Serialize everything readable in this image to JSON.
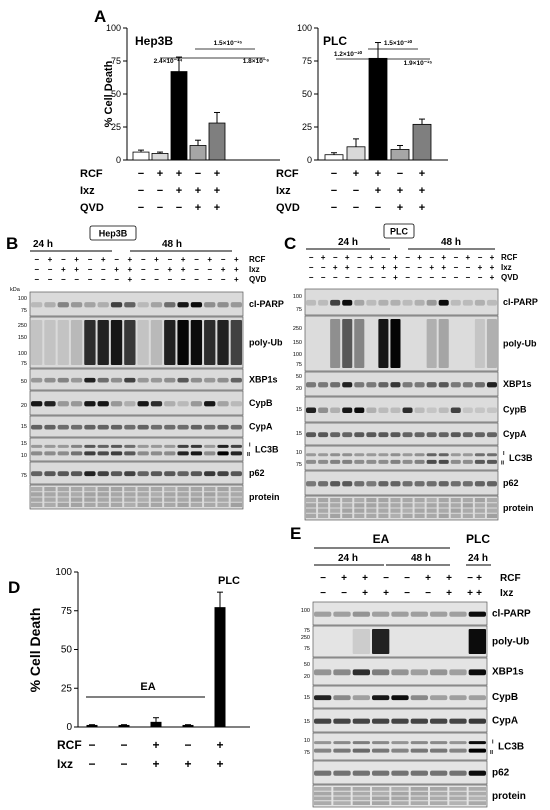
{
  "panel_labels": {
    "A": "A",
    "B": "B",
    "C": "C",
    "D": "D",
    "E": "E"
  },
  "chart_data": [
    {
      "type": "bar",
      "title": "Hep3B",
      "ylabel": "% Cell Death",
      "ylim": [
        0,
        100
      ],
      "yticks": [
        "0",
        "25",
        "50",
        "75",
        "100"
      ],
      "colors": [
        "#ffffff",
        "#d9d9d9",
        "#000000",
        "#a6a6a6",
        "#7f7f7f"
      ],
      "values": [
        6,
        5,
        67,
        11,
        28
      ],
      "errors": [
        1.5,
        1,
        11,
        4,
        8
      ],
      "pvalues": [
        "1.5×10⁻¹⁵",
        "2.4×10⁻¹⁴",
        "1.8×10⁻⁶"
      ]
    },
    {
      "type": "bar",
      "title": "PLC",
      "ylim": [
        0,
        100
      ],
      "yticks": [
        "0",
        "25",
        "50",
        "75",
        "100"
      ],
      "colors": [
        "#ffffff",
        "#d9d9d9",
        "#000000",
        "#a6a6a6",
        "#7f7f7f"
      ],
      "values": [
        4,
        10,
        77,
        8,
        27
      ],
      "errors": [
        1.5,
        6,
        12,
        3,
        4
      ],
      "pvalues": [
        "1.5×10⁻²⁰",
        "1.2×10⁻²⁰",
        "1.9×10⁻¹⁵"
      ]
    },
    {
      "type": "bar",
      "ylabel": "% Cell Death",
      "ylim": [
        0,
        100
      ],
      "yticks": [
        "0",
        "25",
        "50",
        "75",
        "100"
      ],
      "values": [
        1,
        1,
        3,
        1,
        77
      ],
      "errors": [
        0.5,
        0.5,
        3,
        0.5,
        10
      ],
      "colors": [
        "#000000",
        "#000000",
        "#000000",
        "#000000",
        "#000000"
      ],
      "annotations": {
        "group": "EA",
        "single": "PLC"
      }
    }
  ],
  "treatments_a": {
    "labels": [
      "RCF",
      "Ixz",
      "QVD"
    ],
    "rows": [
      [
        "−",
        "+",
        "+",
        "−",
        "+"
      ],
      [
        "−",
        "−",
        "+",
        "+",
        "+"
      ],
      [
        "−",
        "−",
        "−",
        "+",
        "+"
      ]
    ]
  },
  "treatments_d": {
    "labels": [
      "RCF",
      "Ixz"
    ],
    "rows": [
      [
        "−",
        "−",
        "+",
        "−",
        "+"
      ],
      [
        "−",
        "−",
        "+",
        "+",
        "+"
      ]
    ]
  },
  "panel_b": {
    "cell_line": "Hep3B",
    "times": [
      "24 h",
      "48 h"
    ],
    "treatment_labels": [
      "RCF",
      "Ixz",
      "QVD"
    ],
    "treatment_rows": [
      [
        "−",
        "+",
        "−",
        "+",
        "−",
        "+",
        "−",
        "+",
        "−",
        "+",
        "−",
        "+",
        "−",
        "+",
        "−",
        "+"
      ],
      [
        "−",
        "−",
        "+",
        "+",
        "−",
        "−",
        "+",
        "+",
        "−",
        "−",
        "+",
        "+",
        "−",
        "−",
        "+",
        "+"
      ],
      [
        "−",
        "−",
        "−",
        "−",
        "−",
        "−",
        "−",
        "+",
        "−",
        "−",
        "−",
        "−",
        "−",
        "−",
        "−",
        "+"
      ]
    ],
    "kda": "kDa",
    "bands": [
      "cl-PARP",
      "poly-Ub",
      "XBP1s",
      "CypB",
      "CypA",
      "LC3B",
      "p62",
      "protein"
    ],
    "markers": [
      "100",
      "75",
      "250",
      "150",
      "100",
      "75",
      "50",
      "20",
      "15",
      "15",
      "10",
      "75"
    ]
  },
  "panel_c": {
    "cell_line": "PLC",
    "times": [
      "24 h",
      "48 h"
    ],
    "treatment_labels": [
      "RCF",
      "Ixz",
      "QVD"
    ],
    "treatment_rows": [
      [
        "−",
        "+",
        "−",
        "+",
        "−",
        "+",
        "−",
        "+",
        "−",
        "+",
        "−",
        "+",
        "−",
        "+",
        "−",
        "+"
      ],
      [
        "−",
        "−",
        "+",
        "+",
        "−",
        "−",
        "+",
        "+",
        "−",
        "−",
        "+",
        "+",
        "−",
        "−",
        "+",
        "+"
      ],
      [
        "−",
        "−",
        "−",
        "−",
        "−",
        "−",
        "−",
        "+",
        "−",
        "−",
        "−",
        "−",
        "−",
        "−",
        "−",
        "+"
      ]
    ],
    "bands": [
      "cl-PARP",
      "poly-Ub",
      "XBP1s",
      "CypB",
      "CypA",
      "LC3B",
      "p62",
      "protein"
    ],
    "markers": [
      "100",
      "75",
      "250",
      "150",
      "100",
      "75",
      "50",
      "20",
      "15",
      "15",
      "10",
      "75"
    ]
  },
  "panel_e": {
    "group": "EA",
    "single": "PLC",
    "times": [
      "24 h",
      "48 h",
      "24 h"
    ],
    "treatment_labels": [
      "RCF",
      "Ixz"
    ],
    "treatment_rows": [
      [
        "−",
        "+",
        "+",
        "−",
        "−",
        "+",
        "+",
        "−",
        "+"
      ],
      [
        "−",
        "−",
        "+",
        "+",
        "−",
        "−",
        "+",
        "+",
        "+"
      ]
    ],
    "bands": [
      "cl-PARP",
      "poly-Ub",
      "XBP1s",
      "CypB",
      "CypA",
      "LC3B",
      "p62",
      "protein"
    ],
    "markers": [
      "100",
      "75",
      "250",
      "75",
      "50",
      "20",
      "15",
      "15",
      "10",
      "75"
    ]
  },
  "lc3b_forms": [
    "I",
    "II"
  ]
}
